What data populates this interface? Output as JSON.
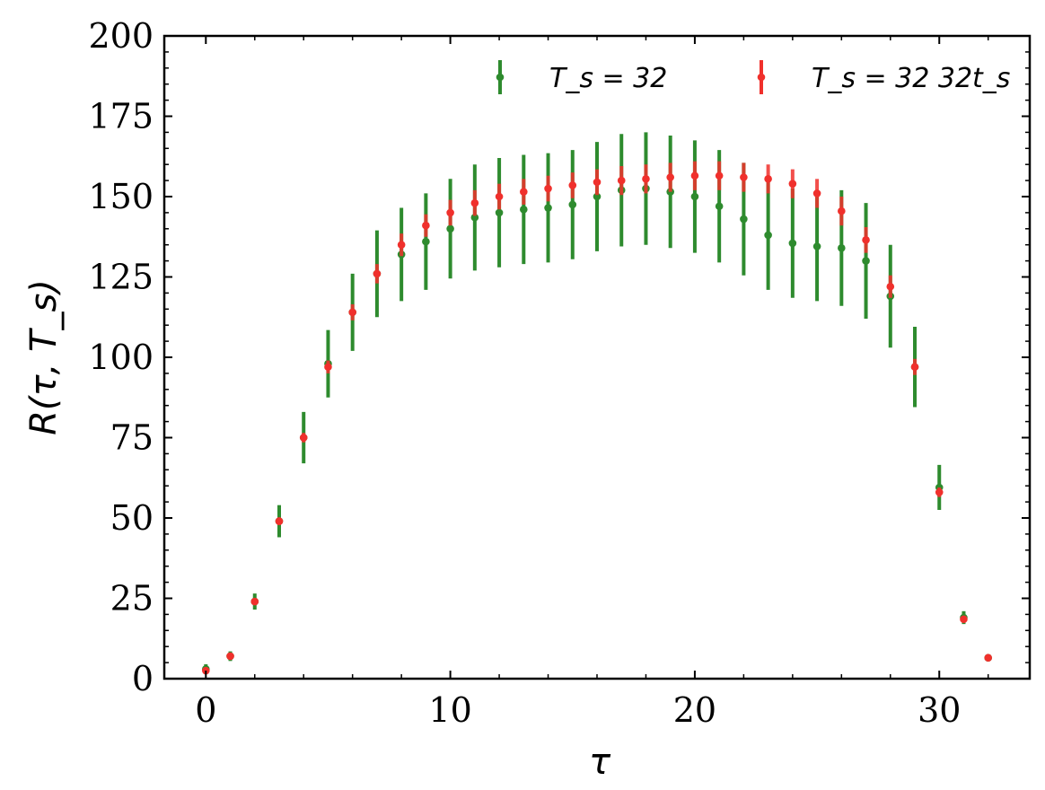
{
  "chart_data": {
    "type": "scatter",
    "xlabel": "τ",
    "ylabel": "R(τ, T_s)",
    "xlim": [
      -1.7,
      33.7
    ],
    "ylim": [
      0,
      200
    ],
    "xticks": [
      0,
      10,
      20,
      30
    ],
    "yticks": [
      0,
      25,
      50,
      75,
      100,
      125,
      150,
      175,
      200
    ],
    "grid": false,
    "legend_position": "top",
    "colors": {
      "green": "#2e8b2e",
      "red": "#f0302c"
    },
    "series": [
      {
        "name": "T_s = 32",
        "color": "#2e8b2e",
        "x": [
          0,
          1,
          2,
          3,
          4,
          5,
          6,
          7,
          8,
          9,
          10,
          11,
          12,
          13,
          14,
          15,
          16,
          17,
          18,
          19,
          20,
          21,
          22,
          23,
          24,
          25,
          26,
          27,
          28,
          29,
          30,
          31,
          32
        ],
        "y": [
          3,
          7,
          24,
          49,
          75,
          98,
          114,
          126,
          132,
          136,
          140,
          143.5,
          145,
          146,
          146.5,
          147.5,
          150,
          152,
          152.5,
          151.5,
          150,
          147,
          143,
          138,
          135.5,
          134.5,
          134,
          130,
          119,
          97,
          59.5,
          19,
          6.5
        ],
        "err": [
          1.5,
          1.5,
          2.5,
          5,
          8,
          10.5,
          12,
          13.5,
          14.5,
          15,
          15.5,
          16.5,
          17,
          17,
          17,
          17,
          17,
          17.5,
          17.5,
          17.5,
          17.5,
          17.5,
          17.5,
          17,
          17,
          17,
          18,
          18,
          16,
          12.5,
          7,
          2,
          1
        ]
      },
      {
        "name": "T_s = 32 32t_s",
        "color": "#f0302c",
        "x": [
          0,
          1,
          2,
          3,
          4,
          5,
          6,
          7,
          8,
          9,
          10,
          11,
          12,
          13,
          14,
          15,
          16,
          17,
          18,
          19,
          20,
          21,
          22,
          23,
          24,
          25,
          26,
          27,
          28,
          29,
          30,
          31,
          32
        ],
        "y": [
          2.5,
          7,
          24,
          49,
          75,
          97,
          114,
          126,
          135,
          141,
          145,
          148,
          150,
          151.5,
          152.5,
          153.5,
          154.5,
          155,
          155.5,
          156,
          156.5,
          156.5,
          156,
          155.5,
          154,
          151,
          145.5,
          136.5,
          122,
          97,
          58,
          18.5,
          6.5
        ],
        "err": [
          1,
          1,
          1,
          1.2,
          1.5,
          2,
          2.5,
          3,
          3.5,
          3.5,
          4,
          4,
          4,
          4,
          4,
          4,
          4,
          4.5,
          4.5,
          4.5,
          4.5,
          4.5,
          4.5,
          4.5,
          4.5,
          4.5,
          4.5,
          4,
          3.5,
          2.5,
          1.5,
          1,
          1
        ]
      }
    ]
  }
}
